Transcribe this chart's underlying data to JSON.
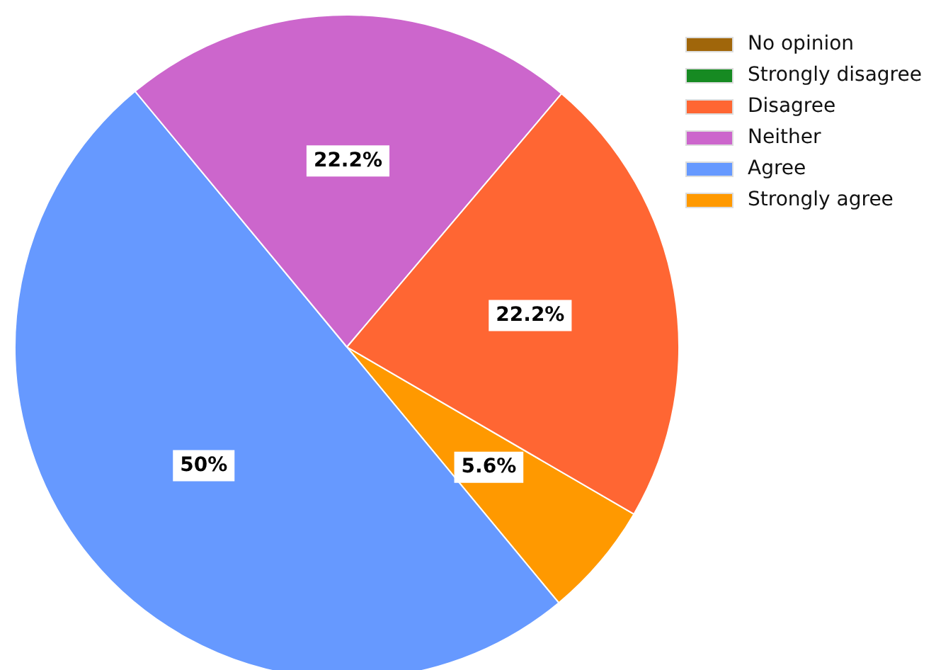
{
  "chart_data": {
    "type": "pie",
    "categories": [
      "No opinion",
      "Strongly disagree",
      "Disagree",
      "Neither",
      "Agree",
      "Strongly agree"
    ],
    "values": [
      0,
      0,
      22.2,
      22.2,
      50,
      5.6
    ],
    "colors": [
      "#a0660a",
      "#168a22",
      "#ff6633",
      "#cc66cc",
      "#6699ff",
      "#ff9900"
    ],
    "value_labels": [
      null,
      null,
      "22.2%",
      "22.2%",
      "50%",
      "5.6%"
    ],
    "legend": "top right"
  }
}
